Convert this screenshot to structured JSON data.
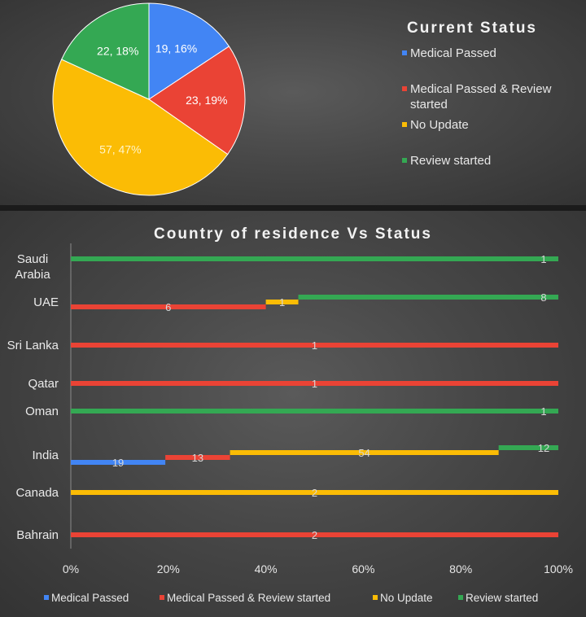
{
  "colors": {
    "medical_passed": "#4285f4",
    "medical_passed_review": "#ea4335",
    "no_update": "#fbbc05",
    "review_started": "#34a853"
  },
  "chart_data": [
    {
      "type": "pie",
      "title": "Current Status",
      "legend_position": "right",
      "slices": [
        {
          "label": "Medical Passed",
          "value": 19,
          "percent": 16,
          "data_label": "19, 16%"
        },
        {
          "label": "Medical Passed & Review started",
          "value": 23,
          "percent": 19,
          "data_label": "23, 19%"
        },
        {
          "label": "No Update",
          "value": 57,
          "percent": 47,
          "data_label": "57, 47%"
        },
        {
          "label": "Review started",
          "value": 22,
          "percent": 18,
          "data_label": "22, 18%"
        }
      ]
    },
    {
      "type": "bar",
      "stacked": "100%",
      "orientation": "horizontal",
      "title": "Country of residence Vs Status",
      "legend_position": "bottom",
      "categories": [
        "Saudi Arabia",
        "UAE",
        "Sri Lanka",
        "Qatar",
        "Oman",
        "India",
        "Canada",
        "Bahrain"
      ],
      "x_tick_labels": [
        "0%",
        "20%",
        "40%",
        "60%",
        "80%",
        "100%"
      ],
      "series": [
        {
          "name": "Medical Passed",
          "values": [
            0,
            0,
            0,
            0,
            0,
            19,
            0,
            0
          ]
        },
        {
          "name": "Medical Passed & Review started",
          "values": [
            0,
            6,
            1,
            1,
            0,
            13,
            0,
            2
          ]
        },
        {
          "name": "No Update",
          "values": [
            0,
            1,
            0,
            0,
            0,
            54,
            2,
            0
          ]
        },
        {
          "name": "Review started",
          "values": [
            1,
            8,
            0,
            0,
            1,
            12,
            0,
            0
          ]
        }
      ]
    }
  ]
}
